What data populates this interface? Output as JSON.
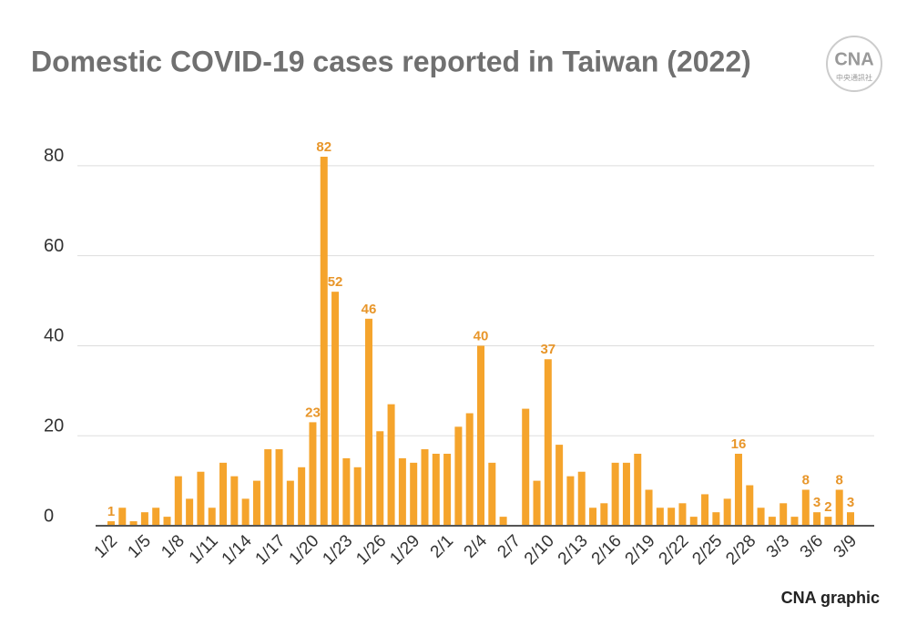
{
  "chart_data": {
    "type": "bar",
    "title": "Domestic COVID-19 cases reported in Taiwan (2022)",
    "logo": "CNA",
    "logo_subtitle": "中央通訊社",
    "credit": "CNA graphic",
    "color": "#f5a42c",
    "categories": [
      "1/2",
      null,
      null,
      "1/5",
      null,
      null,
      "1/8",
      null,
      null,
      "1/11",
      null,
      null,
      "1/14",
      null,
      null,
      "1/17",
      null,
      null,
      "1/20",
      null,
      null,
      "1/23",
      null,
      null,
      "1/26",
      null,
      null,
      "1/29",
      null,
      null,
      "2/1",
      null,
      null,
      "2/4",
      null,
      null,
      "2/7",
      null,
      null,
      "2/10",
      null,
      null,
      "2/13",
      null,
      null,
      "2/16",
      null,
      null,
      "2/19",
      null,
      null,
      "2/22",
      null,
      null,
      "2/25",
      null,
      null,
      "2/28",
      null,
      null,
      "3/3",
      null,
      null,
      "3/6",
      null,
      null,
      "3/9"
    ],
    "values": [
      1,
      4,
      1,
      3,
      4,
      2,
      11,
      6,
      12,
      4,
      14,
      11,
      6,
      10,
      17,
      17,
      10,
      13,
      23,
      82,
      52,
      15,
      13,
      46,
      21,
      27,
      15,
      14,
      17,
      16,
      16,
      22,
      25,
      40,
      14,
      2,
      0,
      26,
      10,
      37,
      18,
      11,
      12,
      4,
      5,
      14,
      14,
      16,
      8,
      4,
      4,
      5,
      2,
      7,
      3,
      6,
      16,
      9,
      4,
      2,
      5,
      2,
      8,
      3,
      2,
      8,
      3
    ],
    "value_labels": [
      "1",
      null,
      null,
      null,
      null,
      null,
      null,
      null,
      null,
      null,
      null,
      null,
      null,
      null,
      null,
      null,
      null,
      null,
      "23",
      "82",
      "52",
      null,
      null,
      "46",
      null,
      null,
      null,
      null,
      null,
      null,
      null,
      null,
      null,
      "40",
      null,
      null,
      null,
      null,
      null,
      "37",
      null,
      null,
      null,
      null,
      null,
      null,
      null,
      null,
      null,
      null,
      null,
      null,
      null,
      null,
      null,
      null,
      "16",
      null,
      null,
      null,
      null,
      null,
      "8",
      "3",
      "2",
      "8",
      "3"
    ],
    "ylim": [
      0,
      82
    ],
    "yticks": [
      0,
      20,
      40,
      60,
      80
    ],
    "grid": true
  }
}
